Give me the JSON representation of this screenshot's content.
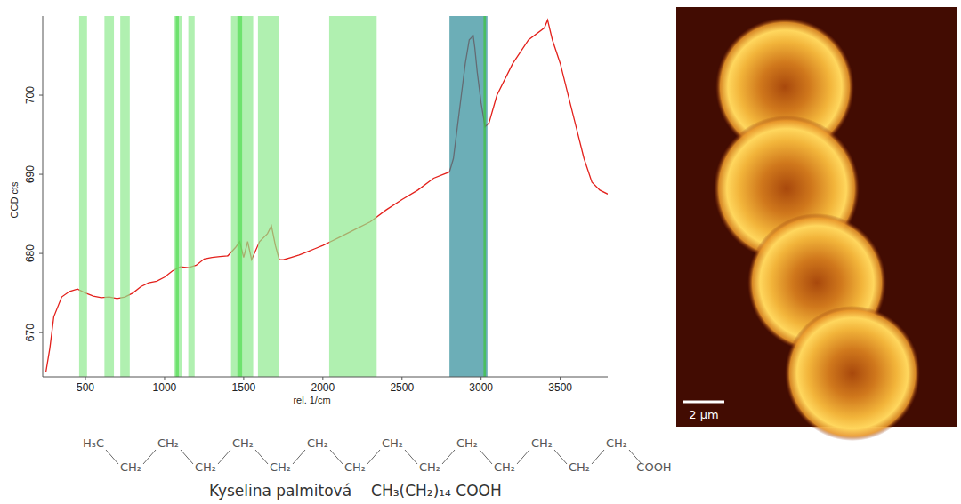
{
  "chart_data": {
    "type": "line",
    "x_label": "rel. 1/cm",
    "y_label": "CCD cts",
    "xlim": [
      230,
      3800
    ],
    "ylim": [
      664.4,
      710
    ],
    "xticks": [
      500,
      1000,
      1500,
      2000,
      2500,
      3000,
      3500
    ],
    "yticks": [
      670,
      680,
      690,
      700
    ],
    "grid": false,
    "x": [
      250,
      275,
      300,
      350,
      400,
      450,
      500,
      550,
      600,
      650,
      700,
      750,
      800,
      850,
      900,
      950,
      1000,
      1050,
      1100,
      1150,
      1200,
      1250,
      1300,
      1350,
      1400,
      1450,
      1475,
      1500,
      1525,
      1550,
      1600,
      1650,
      1675,
      1700,
      1725,
      1750,
      1800,
      1850,
      1900,
      1950,
      2000,
      2050,
      2100,
      2200,
      2300,
      2400,
      2500,
      2600,
      2700,
      2800,
      2825,
      2850,
      2875,
      2900,
      2925,
      2950,
      2960,
      2975,
      3000,
      3025,
      3050,
      3100,
      3200,
      3300,
      3400,
      3420,
      3450,
      3500,
      3550,
      3600,
      3650,
      3700,
      3750,
      3800
    ],
    "series": [
      {
        "color": "#e3201b",
        "values": [
          665,
          668,
          672,
          674.5,
          675.2,
          675.5,
          675,
          674.6,
          674.4,
          674.5,
          674.3,
          674.5,
          675,
          675.8,
          676.3,
          676.5,
          677,
          677.8,
          678.3,
          678.2,
          678.5,
          679.3,
          679.5,
          679.6,
          679.7,
          680.8,
          681.5,
          679.5,
          681.5,
          679.2,
          681.5,
          682.5,
          683.5,
          681,
          679.2,
          679.2,
          679.5,
          679.8,
          680.2,
          680.6,
          681,
          681.5,
          682,
          683,
          684,
          685.5,
          686.8,
          688,
          689.5,
          690.3,
          692,
          696,
          700,
          704,
          707,
          707.5,
          706,
          703,
          699,
          696,
          696.5,
          700,
          704,
          707,
          708.5,
          709.5,
          707,
          704,
          700,
          696,
          692,
          689,
          688,
          687.5
        ]
      }
    ],
    "regions": [
      {
        "x0": 460,
        "x1": 510,
        "color": "#8eea8e"
      },
      {
        "x0": 620,
        "x1": 680,
        "color": "#8eea8e"
      },
      {
        "x0": 720,
        "x1": 780,
        "color": "#8eea8e"
      },
      {
        "x0": 1060,
        "x1": 1110,
        "color": "#8eea8e"
      },
      {
        "x0": 1150,
        "x1": 1190,
        "color": "#8eea8e"
      },
      {
        "x0": 1420,
        "x1": 1560,
        "color": "#8eea8e"
      },
      {
        "x0": 1590,
        "x1": 1720,
        "color": "#8eea8e"
      },
      {
        "x0": 2040,
        "x1": 2340,
        "color": "#8eea8e"
      },
      {
        "x0": 1070,
        "x1": 1090,
        "color": "#52dc52"
      },
      {
        "x0": 1460,
        "x1": 1490,
        "color": "#52dc52"
      },
      {
        "x0": 2800,
        "x1": 3040,
        "color": "#2e8b98"
      },
      {
        "x0": 3015,
        "x1": 3030,
        "color": "#3cc43c"
      }
    ]
  },
  "image": {
    "scale_bar": "2 µm"
  },
  "structure": {
    "groups": [
      "H₃C",
      "CH₂",
      "CH₂",
      "CH₂",
      "CH₂",
      "CH₂",
      "CH₂",
      "CH₂",
      "CH₂",
      "CH₂",
      "CH₂",
      "CH₂",
      "CH₂",
      "CH₂",
      "CH₂",
      "COOH"
    ],
    "caption": "Kyselina palmitová",
    "formula": "CH₃(CH₂)₁₄ COOH"
  }
}
